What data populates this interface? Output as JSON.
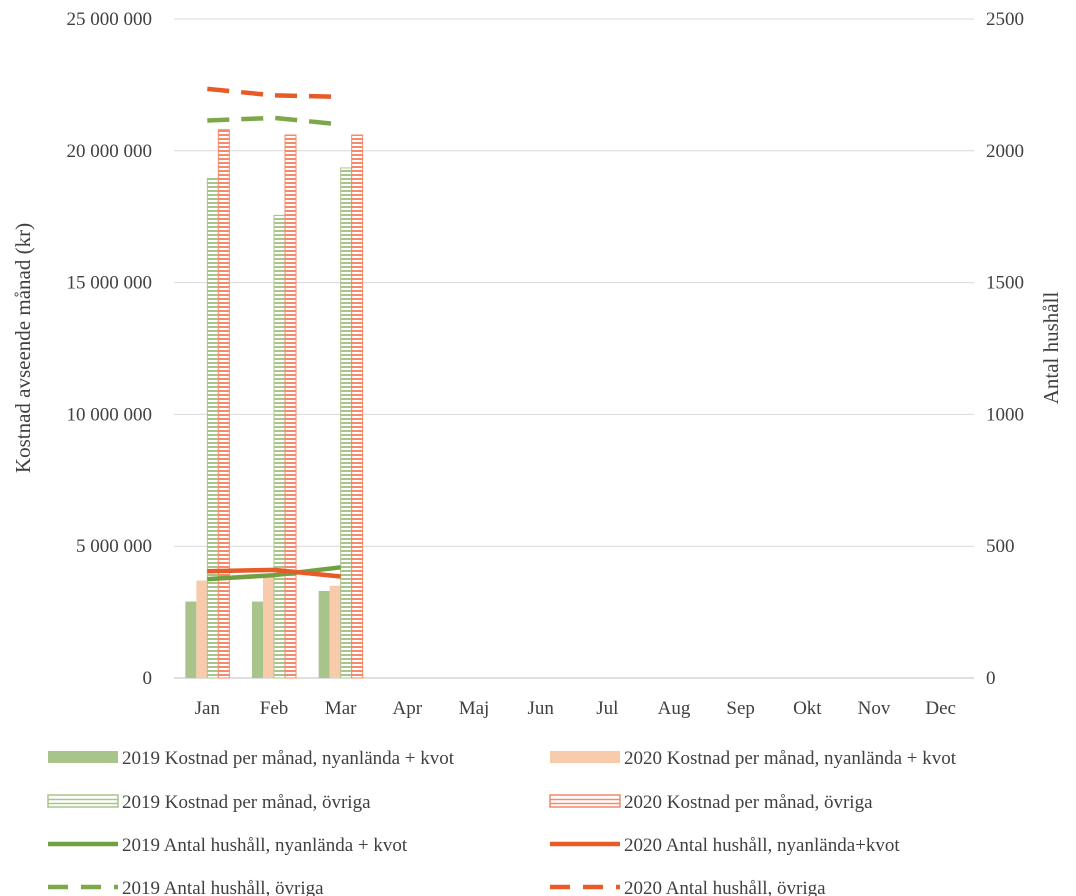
{
  "chart_data": {
    "type": "bar",
    "categories": [
      "Jan",
      "Feb",
      "Mar",
      "Apr",
      "Maj",
      "Jun",
      "Jul",
      "Aug",
      "Sep",
      "Okt",
      "Nov",
      "Dec"
    ],
    "ylabel": "Kostnad avseende månad (kr)",
    "y2label": "Antal hushåll",
    "ylim": [
      0,
      25000000
    ],
    "y2lim": [
      0,
      2500
    ],
    "yticks": [
      "0",
      "5 000 000",
      "10 000 000",
      "15 000 000",
      "20 000 000",
      "25 000 000"
    ],
    "y2ticks": [
      "0",
      "500",
      "1000",
      "1500",
      "2000",
      "2500"
    ],
    "grid": true,
    "legend_position": "bottom",
    "bar_series": [
      {
        "name": "2019 Kostnad per månad, nyanlända + kvot",
        "color": "#a9c48b",
        "style": "solid",
        "values": [
          2900000,
          2900000,
          3300000
        ]
      },
      {
        "name": "2020 Kostnad per månad, nyanlända + kvot",
        "color": "#f8cbad",
        "style": "solid",
        "values": [
          3700000,
          3800000,
          3500000
        ]
      },
      {
        "name": "2019 Kostnad per månad, övriga",
        "color": "#a9c48b",
        "style": "striped",
        "values": [
          18950000,
          17550000,
          19350000
        ]
      },
      {
        "name": "2020 Kostnad per månad, övriga",
        "color": "#f4896b",
        "style": "striped",
        "values": [
          20800000,
          20600000,
          20600000
        ]
      }
    ],
    "line_series": [
      {
        "name": "2019 Antal hushåll, nyanlända + kvot",
        "color": "#70a040",
        "style": "solid",
        "values": [
          375,
          390,
          420
        ]
      },
      {
        "name": "2020 Antal hushåll, nyanlända+kvot",
        "color": "#e85a26",
        "style": "solid",
        "values": [
          405,
          410,
          385
        ]
      },
      {
        "name": "2019 Antal hushåll, övriga",
        "color": "#7ca84a",
        "style": "dashed",
        "values": [
          2115,
          2125,
          2100
        ]
      },
      {
        "name": "2020 Antal hushåll, övriga",
        "color": "#e85a26",
        "style": "dashed",
        "values": [
          2235,
          2210,
          2205
        ]
      }
    ]
  }
}
